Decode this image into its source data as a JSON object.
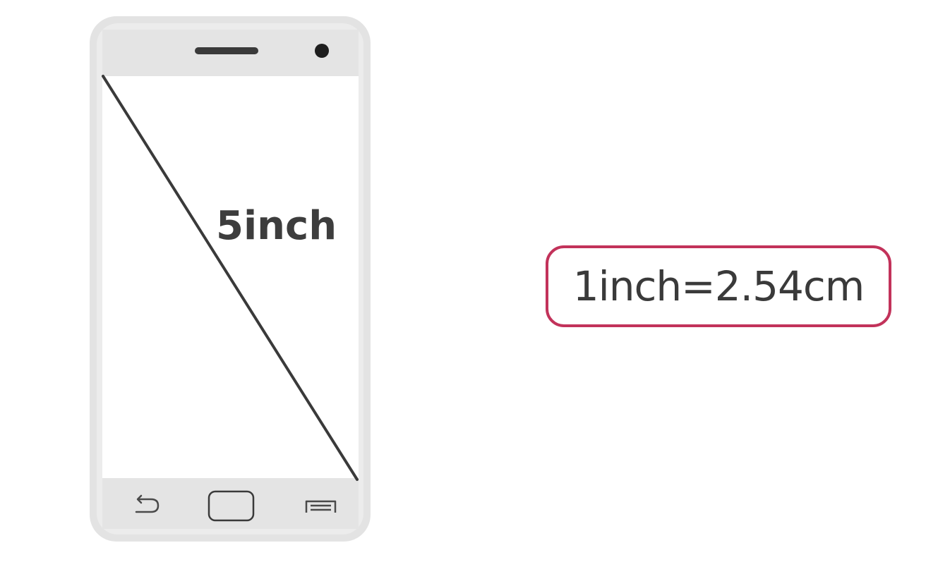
{
  "phone": {
    "diagonal_label": "5inch"
  },
  "conversion": {
    "text": "1inch=2.54cm"
  },
  "colors": {
    "accent_border": "#c2325a",
    "text": "#3d3d3d",
    "phone_body": "#e6e6e6",
    "phone_bezel": "#ececec",
    "screen": "#ffffff"
  },
  "icons": {
    "speaker": "speaker-slot-icon",
    "camera": "front-camera-icon",
    "back": "back-arrow-icon",
    "home": "home-button-icon",
    "menu": "menu-icon"
  }
}
